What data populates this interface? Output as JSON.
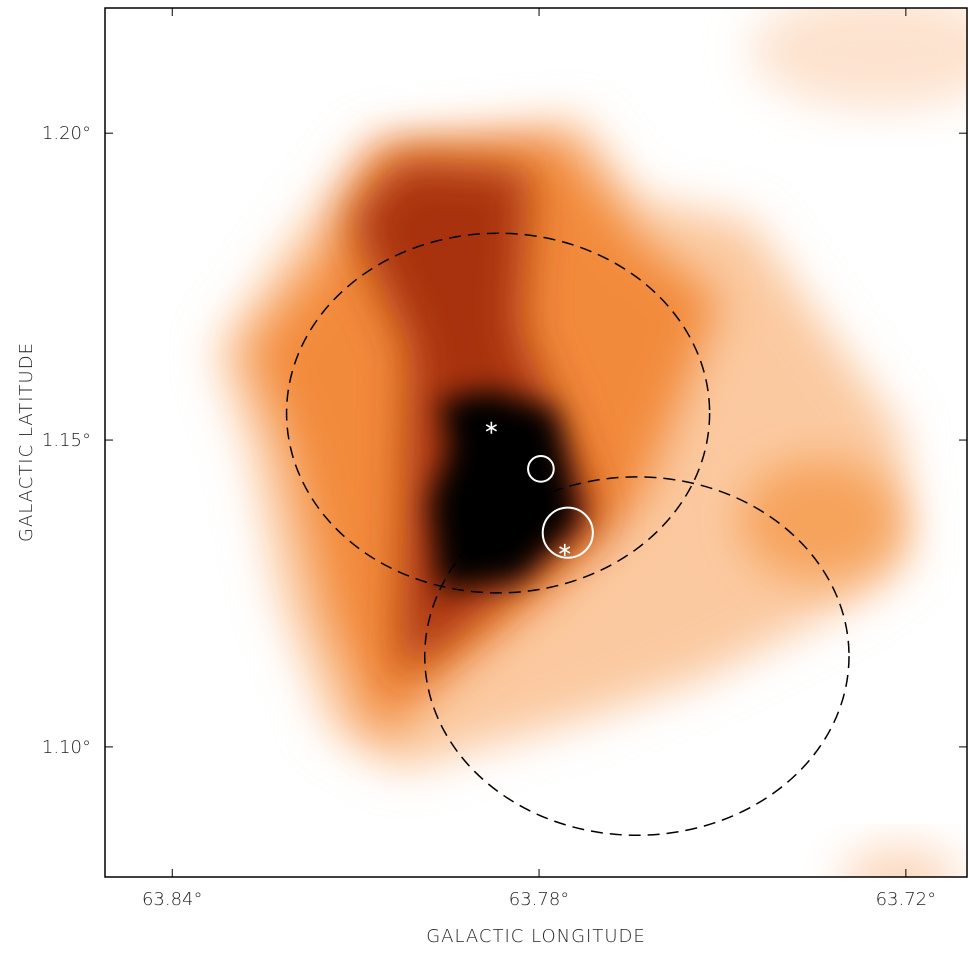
{
  "chart_data": {
    "type": "sky-map",
    "x_label": "GALACTIC LONGITUDE",
    "y_label": "GALACTIC LATITUDE",
    "xlim": [
      63.851,
      63.71
    ],
    "ylim": [
      1.0788,
      1.2204
    ],
    "xticks": [
      {
        "value": 63.84,
        "label": "63.84°"
      },
      {
        "value": 63.78,
        "label": "63.78°"
      },
      {
        "value": 63.72,
        "label": "63.72°"
      }
    ],
    "yticks": [
      {
        "value": 1.1,
        "label": "1.10°"
      },
      {
        "value": 1.15,
        "label": "1.15°"
      },
      {
        "value": 1.2,
        "label": "1.20°"
      }
    ],
    "dashed_ellipses": {
      "color": "#000000",
      "x": [
        63.7867,
        63.764
      ],
      "y": [
        1.1544,
        1.1148
      ],
      "rx": [
        0.0346,
        0.0347
      ],
      "ry": [
        0.0293,
        0.0292
      ]
    },
    "white_circles": {
      "color": "#ffffff",
      "x": [
        63.7797,
        63.7753
      ],
      "y": [
        1.1453,
        1.1349
      ],
      "r": [
        0.0021,
        0.0041
      ]
    },
    "stars": {
      "color": "#ffffff",
      "x": [
        63.7878,
        63.7758
      ],
      "y": [
        1.152,
        1.1321
      ]
    }
  }
}
